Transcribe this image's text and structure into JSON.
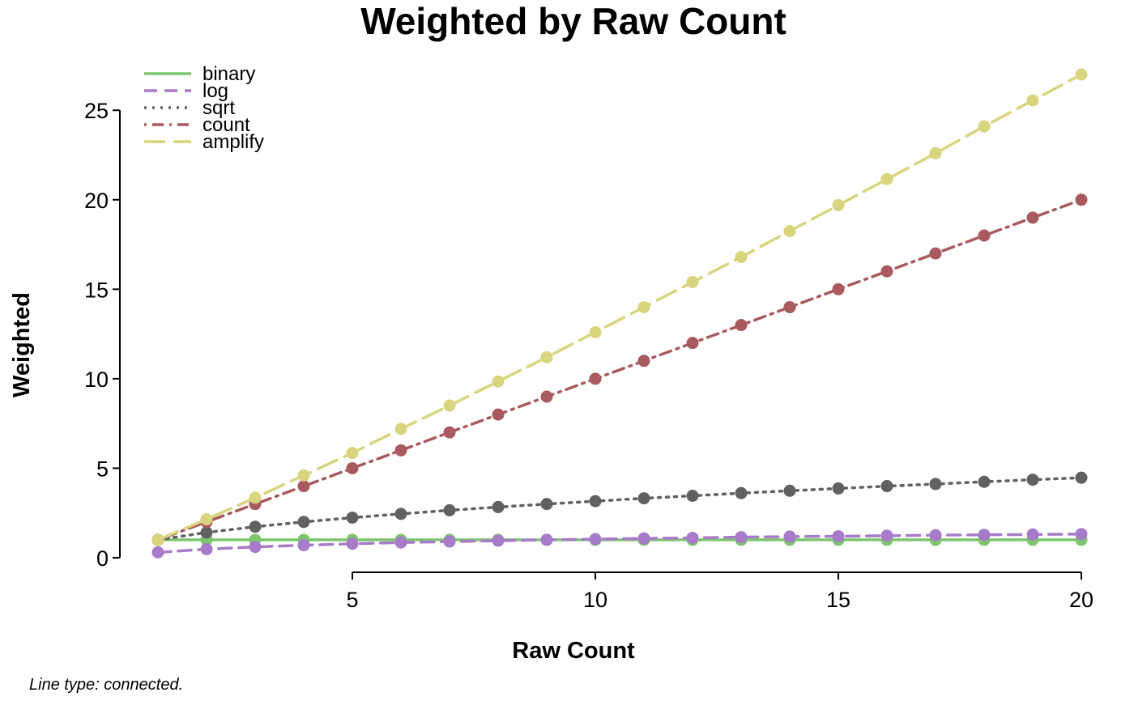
{
  "chart_data": {
    "type": "line",
    "title": "Weighted by Raw Count",
    "xlabel": "Raw Count",
    "ylabel": "Weighted",
    "caption": "Line type: connected.",
    "xlim": [
      1,
      20
    ],
    "ylim": [
      0,
      27
    ],
    "xticks": [
      5,
      10,
      15,
      20
    ],
    "yticks": [
      0,
      5,
      10,
      15,
      20,
      25
    ],
    "grid": false,
    "legend_position": "top-left",
    "x": [
      1,
      2,
      3,
      4,
      5,
      6,
      7,
      8,
      9,
      10,
      11,
      12,
      13,
      14,
      15,
      16,
      17,
      18,
      19,
      20
    ],
    "series": [
      {
        "name": "binary",
        "color": "#7dc46f",
        "dash": "solid",
        "values": [
          1,
          1,
          1,
          1,
          1,
          1,
          1,
          1,
          1,
          1,
          1,
          1,
          1,
          1,
          1,
          1,
          1,
          1,
          1,
          1
        ]
      },
      {
        "name": "log",
        "color": "#a77bc9",
        "dash": "dashed",
        "values": [
          0.3,
          0.48,
          0.6,
          0.7,
          0.78,
          0.85,
          0.9,
          0.95,
          1.0,
          1.04,
          1.08,
          1.11,
          1.15,
          1.18,
          1.2,
          1.23,
          1.26,
          1.28,
          1.3,
          1.32
        ]
      },
      {
        "name": "sqrt",
        "color": "#616161",
        "dash": "dotted",
        "values": [
          1,
          1.41,
          1.73,
          2,
          2.24,
          2.45,
          2.65,
          2.83,
          3,
          3.16,
          3.32,
          3.46,
          3.61,
          3.74,
          3.87,
          4,
          4.12,
          4.24,
          4.36,
          4.47
        ]
      },
      {
        "name": "count",
        "color": "#a85a5e",
        "dash": "dotdash",
        "values": [
          1,
          2,
          3,
          4,
          5,
          6,
          7,
          8,
          9,
          10,
          11,
          12,
          13,
          14,
          15,
          16,
          17,
          18,
          19,
          20
        ]
      },
      {
        "name": "amplify",
        "color": "#d8d57e",
        "dash": "longdash",
        "values": [
          1,
          2.15,
          3.35,
          4.6,
          5.85,
          7.2,
          8.5,
          9.85,
          11.2,
          12.6,
          14.0,
          15.4,
          16.8,
          18.25,
          19.7,
          21.15,
          22.6,
          24.1,
          25.55,
          27.0
        ]
      }
    ]
  }
}
